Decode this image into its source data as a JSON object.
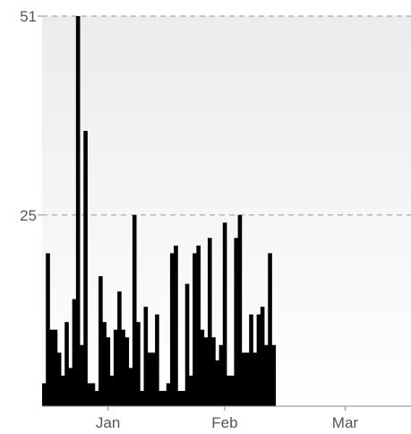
{
  "chart_data": {
    "type": "bar",
    "title": "",
    "xlabel": "",
    "ylabel": "",
    "ylim": [
      0,
      51
    ],
    "yticks": [
      25,
      51
    ],
    "grid": true,
    "x_tick_labels": [
      {
        "label": "Jan",
        "index": 17
      },
      {
        "label": "Feb",
        "index": 48
      },
      {
        "label": "Mar",
        "index": 80
      }
    ],
    "x_range": [
      -0.5,
      97.5
    ],
    "values": [
      3,
      20,
      10,
      10,
      7,
      4,
      11,
      5,
      14,
      51,
      8,
      36,
      3,
      3,
      2,
      17,
      11,
      9,
      4,
      10,
      15,
      10,
      9,
      5,
      25,
      11,
      2,
      13,
      7,
      7,
      12,
      2,
      2,
      3,
      20,
      21,
      2,
      2,
      16,
      4,
      20,
      21,
      10,
      9,
      22,
      9,
      6,
      8,
      24,
      4,
      4,
      22,
      25,
      7,
      7,
      12,
      7,
      12,
      13,
      8,
      20,
      8
    ],
    "bar_color": "#000000",
    "background_gradient": [
      "#ececec",
      "#ffffff"
    ]
  }
}
